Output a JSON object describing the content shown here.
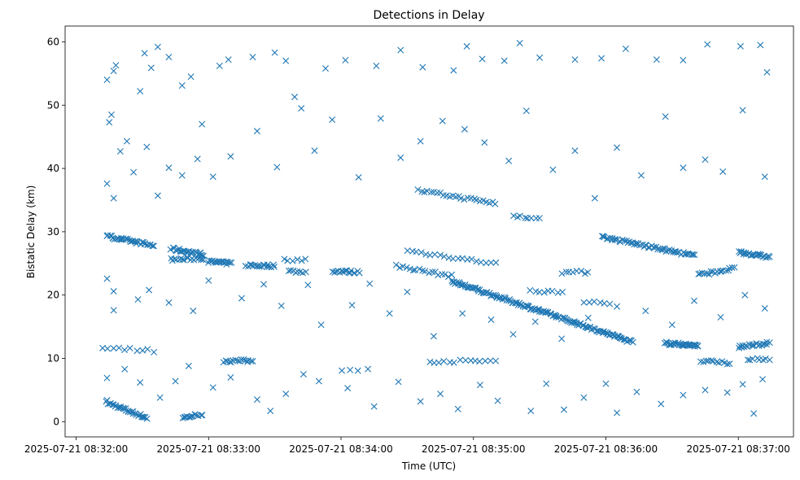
{
  "chart_data": {
    "type": "scatter",
    "title": "Detections in Delay",
    "xlabel": "Time (UTC)",
    "ylabel": "Bistatic Delay (km)",
    "x_unit": "time",
    "xlim": [
      "2025-07-21 08:31:55",
      "2025-07-21 08:37:25"
    ],
    "ylim": [
      -2.4,
      62.5
    ],
    "x_ticks": [
      "2025-07-21 08:32:00",
      "2025-07-21 08:33:00",
      "2025-07-21 08:34:00",
      "2025-07-21 08:35:00",
      "2025-07-21 08:36:00",
      "2025-07-21 08:37:00"
    ],
    "y_ticks": [
      0,
      10,
      20,
      30,
      40,
      50,
      60
    ],
    "grid": false,
    "legend": "none",
    "marker": "x",
    "color": "#1f77b4",
    "series": [
      {
        "tracks": [
          {
            "t": [
              "2025-07-21 08:32:14",
              "2025-07-21 08:32:32"
            ],
            "y": [
              3.0,
              0.6
            ],
            "n": 32
          },
          {
            "t": [
              "2025-07-21 08:32:48",
              "2025-07-21 08:32:57"
            ],
            "y": [
              0.6,
              1.2
            ],
            "n": 14
          },
          {
            "t": [
              "2025-07-21 08:32:14",
              "2025-07-21 08:32:35"
            ],
            "y": [
              29.3,
              27.8
            ],
            "n": 36
          },
          {
            "t": [
              "2025-07-21 08:32:43",
              "2025-07-21 08:32:58"
            ],
            "y": [
              27.3,
              26.4
            ],
            "n": 26
          },
          {
            "t": [
              "2025-07-21 08:32:43",
              "2025-07-21 08:32:58"
            ],
            "y": [
              25.6,
              25.8
            ],
            "n": 18
          },
          {
            "t": [
              "2025-07-21 08:33:00",
              "2025-07-21 08:33:10"
            ],
            "y": [
              25.3,
              25.0
            ],
            "n": 18
          },
          {
            "t": [
              "2025-07-21 08:33:17",
              "2025-07-21 08:33:30"
            ],
            "y": [
              24.7,
              24.6
            ],
            "n": 18
          },
          {
            "t": [
              "2025-07-21 08:33:34",
              "2025-07-21 08:33:44"
            ],
            "y": [
              25.6,
              25.6
            ],
            "n": 6
          },
          {
            "t": [
              "2025-07-21 08:33:36",
              "2025-07-21 08:33:44"
            ],
            "y": [
              23.8,
              23.6
            ],
            "n": 8
          },
          {
            "t": [
              "2025-07-21 08:33:56",
              "2025-07-21 08:34:08"
            ],
            "y": [
              23.8,
              23.6
            ],
            "n": 16
          },
          {
            "t": [
              "2025-07-21 08:33:07",
              "2025-07-21 08:33:20"
            ],
            "y": [
              9.6,
              9.6
            ],
            "n": 16
          },
          {
            "t": [
              "2025-07-21 08:32:12",
              "2025-07-21 08:32:35"
            ],
            "y": [
              11.8,
              11.2
            ],
            "n": 10
          },
          {
            "t": [
              "2025-07-21 08:34:00",
              "2025-07-21 08:34:12"
            ],
            "y": [
              8.2,
              8.2
            ],
            "n": 4
          },
          {
            "t": [
              "2025-07-21 08:34:35",
              "2025-07-21 08:35:10"
            ],
            "y": [
              36.5,
              34.5
            ],
            "n": 26
          },
          {
            "t": [
              "2025-07-21 08:34:30",
              "2025-07-21 08:35:10"
            ],
            "y": [
              27.0,
              25.0
            ],
            "n": 20
          },
          {
            "t": [
              "2025-07-21 08:34:25",
              "2025-07-21 08:34:50"
            ],
            "y": [
              24.6,
              23.0
            ],
            "n": 18
          },
          {
            "t": [
              "2025-07-21 08:34:50",
              "2025-07-21 08:36:12"
            ],
            "y": [
              22.2,
              12.6
            ],
            "n": 150
          },
          {
            "t": [
              "2025-07-21 08:34:40",
              "2025-07-21 08:35:10"
            ],
            "y": [
              9.5,
              9.6
            ],
            "n": 14
          },
          {
            "t": [
              "2025-07-21 08:35:18",
              "2025-07-21 08:35:30"
            ],
            "y": [
              32.6,
              32.0
            ],
            "n": 8
          },
          {
            "t": [
              "2025-07-21 08:35:26",
              "2025-07-21 08:35:40"
            ],
            "y": [
              20.6,
              20.6
            ],
            "n": 8
          },
          {
            "t": [
              "2025-07-21 08:35:40",
              "2025-07-21 08:35:52"
            ],
            "y": [
              23.6,
              23.6
            ],
            "n": 8
          },
          {
            "t": [
              "2025-07-21 08:35:50",
              "2025-07-21 08:36:02"
            ],
            "y": [
              19.0,
              18.8
            ],
            "n": 6
          },
          {
            "t": [
              "2025-07-21 08:35:58",
              "2025-07-21 08:36:40"
            ],
            "y": [
              29.2,
              26.2
            ],
            "n": 58
          },
          {
            "t": [
              "2025-07-21 08:36:27",
              "2025-07-21 08:36:42"
            ],
            "y": [
              12.4,
              12.0
            ],
            "n": 36
          },
          {
            "t": [
              "2025-07-21 08:36:42",
              "2025-07-21 08:36:58"
            ],
            "y": [
              23.2,
              24.2
            ],
            "n": 18
          },
          {
            "t": [
              "2025-07-21 08:36:43",
              "2025-07-21 08:36:56"
            ],
            "y": [
              9.6,
              9.2
            ],
            "n": 12
          },
          {
            "t": [
              "2025-07-21 08:37:00",
              "2025-07-21 08:37:14"
            ],
            "y": [
              26.8,
              26.0
            ],
            "n": 26
          },
          {
            "t": [
              "2025-07-21 08:37:00",
              "2025-07-21 08:37:14"
            ],
            "y": [
              11.8,
              12.4
            ],
            "n": 22
          },
          {
            "t": [
              "2025-07-21 08:37:04",
              "2025-07-21 08:37:14"
            ],
            "y": [
              9.8,
              9.8
            ],
            "n": 8
          }
        ],
        "clutter": [
          [
            "2025-07-21 08:32:14",
            54
          ],
          [
            "2025-07-21 08:32:15",
            47.3
          ],
          [
            "2025-07-21 08:32:16",
            48.5
          ],
          [
            "2025-07-21 08:32:17",
            55.4
          ],
          [
            "2025-07-21 08:32:18",
            56.3
          ],
          [
            "2025-07-21 08:32:20",
            42.7
          ],
          [
            "2025-07-21 08:32:23",
            44.3
          ],
          [
            "2025-07-21 08:32:26",
            39.4
          ],
          [
            "2025-07-21 08:32:29",
            52.2
          ],
          [
            "2025-07-21 08:32:31",
            58.2
          ],
          [
            "2025-07-21 08:32:34",
            55.9
          ],
          [
            "2025-07-21 08:32:37",
            59.2
          ],
          [
            "2025-07-21 08:32:42",
            57.6
          ],
          [
            "2025-07-21 08:32:48",
            53.1
          ],
          [
            "2025-07-21 08:32:52",
            54.5
          ],
          [
            "2025-07-21 08:32:57",
            47.0
          ],
          [
            "2025-07-21 08:33:05",
            56.2
          ],
          [
            "2025-07-21 08:33:09",
            57.2
          ],
          [
            "2025-07-21 08:33:20",
            57.6
          ],
          [
            "2025-07-21 08:33:30",
            58.3
          ],
          [
            "2025-07-21 08:33:35",
            57.0
          ],
          [
            "2025-07-21 08:33:42",
            49.5
          ],
          [
            "2025-07-21 08:33:53",
            55.8
          ],
          [
            "2025-07-21 08:34:02",
            57.1
          ],
          [
            "2025-07-21 08:34:16",
            56.2
          ],
          [
            "2025-07-21 08:34:27",
            58.7
          ],
          [
            "2025-07-21 08:34:37",
            56.0
          ],
          [
            "2025-07-21 08:34:51",
            55.5
          ],
          [
            "2025-07-21 08:34:57",
            59.3
          ],
          [
            "2025-07-21 08:35:04",
            57.3
          ],
          [
            "2025-07-21 08:35:14",
            57.0
          ],
          [
            "2025-07-21 08:35:21",
            59.8
          ],
          [
            "2025-07-21 08:35:30",
            57.5
          ],
          [
            "2025-07-21 08:35:46",
            57.2
          ],
          [
            "2025-07-21 08:35:58",
            57.4
          ],
          [
            "2025-07-21 08:36:09",
            58.9
          ],
          [
            "2025-07-21 08:36:23",
            57.2
          ],
          [
            "2025-07-21 08:36:35",
            57.1
          ],
          [
            "2025-07-21 08:36:46",
            59.6
          ],
          [
            "2025-07-21 08:37:01",
            59.3
          ],
          [
            "2025-07-21 08:37:10",
            59.5
          ],
          [
            "2025-07-21 08:37:13",
            55.2
          ],
          [
            "2025-07-21 08:32:14",
            37.6
          ],
          [
            "2025-07-21 08:32:17",
            35.3
          ],
          [
            "2025-07-21 08:32:32",
            43.4
          ],
          [
            "2025-07-21 08:32:37",
            35.7
          ],
          [
            "2025-07-21 08:32:42",
            40.1
          ],
          [
            "2025-07-21 08:32:48",
            38.9
          ],
          [
            "2025-07-21 08:32:55",
            41.5
          ],
          [
            "2025-07-21 08:33:02",
            38.7
          ],
          [
            "2025-07-21 08:33:10",
            41.9
          ],
          [
            "2025-07-21 08:33:22",
            45.9
          ],
          [
            "2025-07-21 08:33:31",
            40.2
          ],
          [
            "2025-07-21 08:33:39",
            51.3
          ],
          [
            "2025-07-21 08:33:48",
            42.8
          ],
          [
            "2025-07-21 08:33:56",
            47.7
          ],
          [
            "2025-07-21 08:34:08",
            38.6
          ],
          [
            "2025-07-21 08:34:18",
            47.9
          ],
          [
            "2025-07-21 08:34:27",
            41.7
          ],
          [
            "2025-07-21 08:34:36",
            44.3
          ],
          [
            "2025-07-21 08:34:46",
            47.5
          ],
          [
            "2025-07-21 08:34:56",
            46.2
          ],
          [
            "2025-07-21 08:35:05",
            44.1
          ],
          [
            "2025-07-21 08:35:16",
            41.2
          ],
          [
            "2025-07-21 08:35:24",
            49.1
          ],
          [
            "2025-07-21 08:35:36",
            39.8
          ],
          [
            "2025-07-21 08:35:46",
            42.8
          ],
          [
            "2025-07-21 08:35:55",
            35.3
          ],
          [
            "2025-07-21 08:36:05",
            43.3
          ],
          [
            "2025-07-21 08:36:16",
            38.9
          ],
          [
            "2025-07-21 08:36:27",
            48.2
          ],
          [
            "2025-07-21 08:36:35",
            40.1
          ],
          [
            "2025-07-21 08:36:45",
            41.4
          ],
          [
            "2025-07-21 08:36:53",
            39.5
          ],
          [
            "2025-07-21 08:37:02",
            49.2
          ],
          [
            "2025-07-21 08:37:12",
            38.7
          ],
          [
            "2025-07-21 08:32:14",
            22.6
          ],
          [
            "2025-07-21 08:32:17",
            20.6
          ],
          [
            "2025-07-21 08:32:17",
            17.6
          ],
          [
            "2025-07-21 08:32:28",
            19.3
          ],
          [
            "2025-07-21 08:32:33",
            20.8
          ],
          [
            "2025-07-21 08:32:42",
            18.8
          ],
          [
            "2025-07-21 08:32:53",
            17.5
          ],
          [
            "2025-07-21 08:33:00",
            22.3
          ],
          [
            "2025-07-21 08:33:15",
            19.5
          ],
          [
            "2025-07-21 08:33:25",
            21.7
          ],
          [
            "2025-07-21 08:33:33",
            18.3
          ],
          [
            "2025-07-21 08:33:45",
            21.6
          ],
          [
            "2025-07-21 08:33:51",
            15.3
          ],
          [
            "2025-07-21 08:34:05",
            18.4
          ],
          [
            "2025-07-21 08:34:13",
            21.8
          ],
          [
            "2025-07-21 08:34:22",
            17.1
          ],
          [
            "2025-07-21 08:34:30",
            20.5
          ],
          [
            "2025-07-21 08:34:42",
            13.5
          ],
          [
            "2025-07-21 08:34:55",
            17.1
          ],
          [
            "2025-07-21 08:35:08",
            16.1
          ],
          [
            "2025-07-21 08:35:18",
            13.8
          ],
          [
            "2025-07-21 08:35:28",
            15.8
          ],
          [
            "2025-07-21 08:35:40",
            13.1
          ],
          [
            "2025-07-21 08:35:52",
            16.4
          ],
          [
            "2025-07-21 08:36:05",
            18.2
          ],
          [
            "2025-07-21 08:36:18",
            17.5
          ],
          [
            "2025-07-21 08:36:30",
            15.3
          ],
          [
            "2025-07-21 08:36:40",
            19.1
          ],
          [
            "2025-07-21 08:36:52",
            16.5
          ],
          [
            "2025-07-21 08:37:03",
            20.0
          ],
          [
            "2025-07-21 08:37:12",
            17.9
          ],
          [
            "2025-07-21 08:32:14",
            6.9
          ],
          [
            "2025-07-21 08:32:14",
            3.4
          ],
          [
            "2025-07-21 08:32:22",
            8.3
          ],
          [
            "2025-07-21 08:32:29",
            6.2
          ],
          [
            "2025-07-21 08:32:38",
            3.8
          ],
          [
            "2025-07-21 08:32:45",
            6.4
          ],
          [
            "2025-07-21 08:32:51",
            8.8
          ],
          [
            "2025-07-21 08:33:02",
            5.4
          ],
          [
            "2025-07-21 08:33:10",
            7.0
          ],
          [
            "2025-07-21 08:33:22",
            3.5
          ],
          [
            "2025-07-21 08:33:28",
            1.7
          ],
          [
            "2025-07-21 08:33:35",
            4.4
          ],
          [
            "2025-07-21 08:33:43",
            7.5
          ],
          [
            "2025-07-21 08:33:50",
            6.4
          ],
          [
            "2025-07-21 08:34:03",
            5.3
          ],
          [
            "2025-07-21 08:34:15",
            2.4
          ],
          [
            "2025-07-21 08:34:26",
            6.3
          ],
          [
            "2025-07-21 08:34:36",
            3.2
          ],
          [
            "2025-07-21 08:34:45",
            4.4
          ],
          [
            "2025-07-21 08:34:53",
            2.0
          ],
          [
            "2025-07-21 08:35:03",
            5.8
          ],
          [
            "2025-07-21 08:35:11",
            3.3
          ],
          [
            "2025-07-21 08:35:26",
            1.7
          ],
          [
            "2025-07-21 08:35:33",
            6.0
          ],
          [
            "2025-07-21 08:35:41",
            1.9
          ],
          [
            "2025-07-21 08:35:50",
            3.8
          ],
          [
            "2025-07-21 08:36:00",
            6.0
          ],
          [
            "2025-07-21 08:36:05",
            1.4
          ],
          [
            "2025-07-21 08:36:14",
            4.7
          ],
          [
            "2025-07-21 08:36:25",
            2.8
          ],
          [
            "2025-07-21 08:36:35",
            4.2
          ],
          [
            "2025-07-21 08:36:45",
            5.0
          ],
          [
            "2025-07-21 08:36:55",
            4.6
          ],
          [
            "2025-07-21 08:37:02",
            5.9
          ],
          [
            "2025-07-21 08:37:07",
            1.3
          ],
          [
            "2025-07-21 08:37:11",
            6.7
          ]
        ]
      }
    ]
  }
}
